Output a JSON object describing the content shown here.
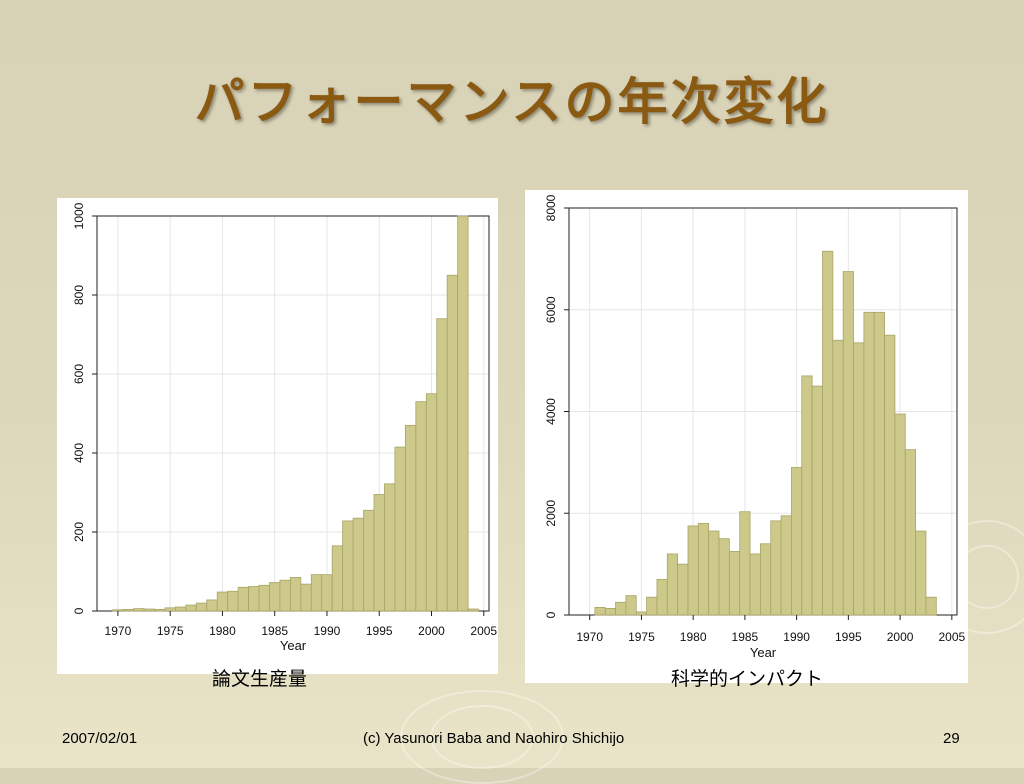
{
  "slide": {
    "title": "パフォーマンスの年次変化",
    "footer_left": "2007/02/01",
    "footer_center": "(c) Yasunori Baba and Naohiro Shichijo",
    "footer_right": "29"
  },
  "colors": {
    "bar_fill": "#cdc98a",
    "bar_stroke": "#a8a466",
    "grid": "#e6e6e6",
    "title": "#8a5a12"
  },
  "chart_data": [
    {
      "type": "bar",
      "caption": "論文生産量",
      "xlabel": "Year",
      "ylabel": "",
      "xlim": [
        1968,
        2005.5
      ],
      "ylim": [
        0,
        1000
      ],
      "xticks": [
        1970,
        1975,
        1980,
        1985,
        1990,
        1995,
        2000,
        2005
      ],
      "yticks": [
        0,
        200,
        400,
        600,
        800,
        1000
      ],
      "grid": true,
      "bin_width": 1,
      "x": [
        1970,
        1971,
        1972,
        1973,
        1974,
        1975,
        1976,
        1977,
        1978,
        1979,
        1980,
        1981,
        1982,
        1983,
        1984,
        1985,
        1986,
        1987,
        1988,
        1989,
        1990,
        1991,
        1992,
        1993,
        1994,
        1995,
        1996,
        1997,
        1998,
        1999,
        2000,
        2001,
        2002,
        2003,
        2004
      ],
      "values": [
        3,
        4,
        6,
        5,
        4,
        8,
        10,
        15,
        20,
        28,
        48,
        50,
        60,
        62,
        65,
        72,
        78,
        85,
        68,
        92,
        92,
        165,
        228,
        235,
        255,
        295,
        322,
        415,
        470,
        530,
        550,
        740,
        850,
        1000,
        5
      ]
    },
    {
      "type": "bar",
      "caption": "科学的インパクト",
      "xlabel": "Year",
      "ylabel": "",
      "xlim": [
        1968,
        2005.5
      ],
      "ylim": [
        0,
        8000
      ],
      "xticks": [
        1970,
        1975,
        1980,
        1985,
        1990,
        1995,
        2000,
        2005
      ],
      "yticks": [
        0,
        2000,
        4000,
        6000,
        8000
      ],
      "grid": true,
      "bin_width": 1,
      "x": [
        1971,
        1972,
        1973,
        1974,
        1975,
        1976,
        1977,
        1978,
        1979,
        1980,
        1981,
        1982,
        1983,
        1984,
        1985,
        1986,
        1987,
        1988,
        1989,
        1990,
        1991,
        1992,
        1993,
        1994,
        1995,
        1996,
        1997,
        1998,
        1999,
        2000,
        2001,
        2002,
        2003
      ],
      "values": [
        150,
        130,
        250,
        380,
        60,
        350,
        700,
        1200,
        1000,
        1750,
        1800,
        1650,
        1500,
        1250,
        2030,
        1200,
        1400,
        1850,
        1950,
        2900,
        4700,
        4500,
        7150,
        5400,
        6750,
        5350,
        5950,
        5950,
        5500,
        3950,
        3250,
        1650,
        350
      ]
    }
  ]
}
